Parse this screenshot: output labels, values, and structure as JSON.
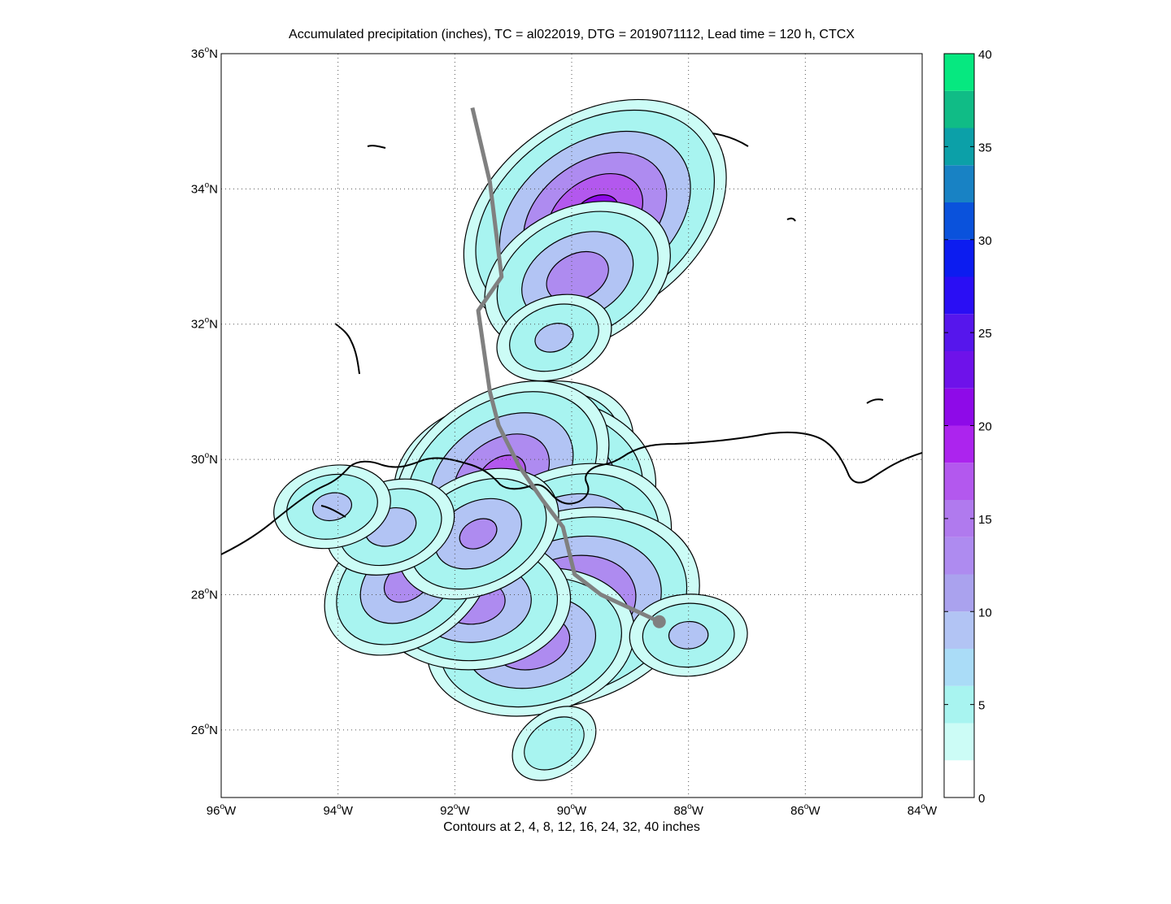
{
  "figure": {
    "title": "Accumulated precipitation (inches), TC = al022019, DTG = 2019071112, Lead time = 120 h, CTCX",
    "caption": "Contours at 2, 4, 8, 12, 16, 24, 32, 40 inches"
  },
  "map": {
    "lon_range": [
      -96,
      -84
    ],
    "lat_range": [
      25,
      36
    ],
    "grid": "dotted",
    "x_ticks": [
      {
        "value": -96,
        "label": "96",
        "suffix": "W"
      },
      {
        "value": -94,
        "label": "94",
        "suffix": "W"
      },
      {
        "value": -92,
        "label": "92",
        "suffix": "W"
      },
      {
        "value": -90,
        "label": "90",
        "suffix": "W"
      },
      {
        "value": -88,
        "label": "88",
        "suffix": "W"
      },
      {
        "value": -86,
        "label": "86",
        "suffix": "W"
      },
      {
        "value": -84,
        "label": "84",
        "suffix": "W"
      }
    ],
    "y_ticks": [
      {
        "value": 26,
        "label": "26",
        "suffix": "N"
      },
      {
        "value": 28,
        "label": "28",
        "suffix": "N"
      },
      {
        "value": 30,
        "label": "30",
        "suffix": "N"
      },
      {
        "value": 32,
        "label": "32",
        "suffix": "N"
      },
      {
        "value": 34,
        "label": "34",
        "suffix": "N"
      },
      {
        "value": 36,
        "label": "36",
        "suffix": "N"
      }
    ],
    "degree_symbol": "o",
    "track": {
      "color": "#808080",
      "points": [
        [
          -91.7,
          35.2
        ],
        [
          -91.4,
          34.1
        ],
        [
          -91.2,
          32.7
        ],
        [
          -91.6,
          32.2
        ],
        [
          -91.4,
          31.0
        ],
        [
          -91.25,
          30.5
        ],
        [
          -90.9,
          29.9
        ],
        [
          -90.5,
          29.4
        ],
        [
          -90.15,
          29.0
        ],
        [
          -89.95,
          28.3
        ],
        [
          -89.5,
          28.0
        ],
        [
          -88.5,
          27.6
        ]
      ]
    },
    "precip_field": {
      "note_levels_inches": [
        2,
        4,
        8,
        12,
        16,
        24,
        32,
        40
      ],
      "cells": [
        {
          "lon": -89.6,
          "lat": 33.6,
          "value": 22
        },
        {
          "lon": -89.9,
          "lat": 32.7,
          "value": 15
        },
        {
          "lon": -90.3,
          "lat": 31.8,
          "value": 9
        },
        {
          "lon": -90.5,
          "lat": 30.2,
          "value": 14
        },
        {
          "lon": -90.8,
          "lat": 29.6,
          "value": 20
        },
        {
          "lon": -91.2,
          "lat": 29.75,
          "value": 18
        },
        {
          "lon": -90.2,
          "lat": 28.6,
          "value": 18
        },
        {
          "lon": -90.1,
          "lat": 27.8,
          "value": 21
        },
        {
          "lon": -90.7,
          "lat": 27.3,
          "value": 16
        },
        {
          "lon": -91.7,
          "lat": 27.9,
          "value": 15
        },
        {
          "lon": -92.8,
          "lat": 28.2,
          "value": 14
        },
        {
          "lon": -91.6,
          "lat": 28.9,
          "value": 13
        },
        {
          "lon": -93.1,
          "lat": 29.0,
          "value": 10
        },
        {
          "lon": -94.1,
          "lat": 29.3,
          "value": 9
        },
        {
          "lon": -88.0,
          "lat": 27.4,
          "value": 9
        },
        {
          "lon": -90.3,
          "lat": 25.8,
          "value": 7
        }
      ]
    }
  },
  "colorbar": {
    "min": 0,
    "max": 40,
    "ticks": [
      {
        "value": 0,
        "label": "0"
      },
      {
        "value": 5,
        "label": "5"
      },
      {
        "value": 10,
        "label": "10"
      },
      {
        "value": 15,
        "label": "15"
      },
      {
        "value": 20,
        "label": "20"
      },
      {
        "value": 25,
        "label": "25"
      },
      {
        "value": 30,
        "label": "30"
      },
      {
        "value": 35,
        "label": "35"
      },
      {
        "value": 40,
        "label": "40"
      }
    ],
    "bands": [
      {
        "from": 0,
        "to": 2,
        "color": "#ffffff"
      },
      {
        "from": 2,
        "to": 4,
        "color": "#ccfcf6"
      },
      {
        "from": 4,
        "to": 6,
        "color": "#a8f4f0"
      },
      {
        "from": 6,
        "to": 8,
        "color": "#aadcf7"
      },
      {
        "from": 8,
        "to": 10,
        "color": "#b2c4f4"
      },
      {
        "from": 10,
        "to": 12,
        "color": "#aaa2ee"
      },
      {
        "from": 12,
        "to": 14,
        "color": "#ae8bf0"
      },
      {
        "from": 14,
        "to": 16,
        "color": "#b07aee"
      },
      {
        "from": 16,
        "to": 18,
        "color": "#b358ee"
      },
      {
        "from": 18,
        "to": 20,
        "color": "#ac24ee"
      },
      {
        "from": 20,
        "to": 22,
        "color": "#8e0ae8"
      },
      {
        "from": 22,
        "to": 24,
        "color": "#6e12ea"
      },
      {
        "from": 24,
        "to": 26,
        "color": "#5616ec"
      },
      {
        "from": 26,
        "to": 28,
        "color": "#2a0ef4"
      },
      {
        "from": 28,
        "to": 30,
        "color": "#0c1cf0"
      },
      {
        "from": 30,
        "to": 32,
        "color": "#0a52dc"
      },
      {
        "from": 32,
        "to": 34,
        "color": "#1882c4"
      },
      {
        "from": 34,
        "to": 36,
        "color": "#0ca0a8"
      },
      {
        "from": 36,
        "to": 38,
        "color": "#10bc86"
      },
      {
        "from": 38,
        "to": 40,
        "color": "#06e880"
      }
    ]
  }
}
